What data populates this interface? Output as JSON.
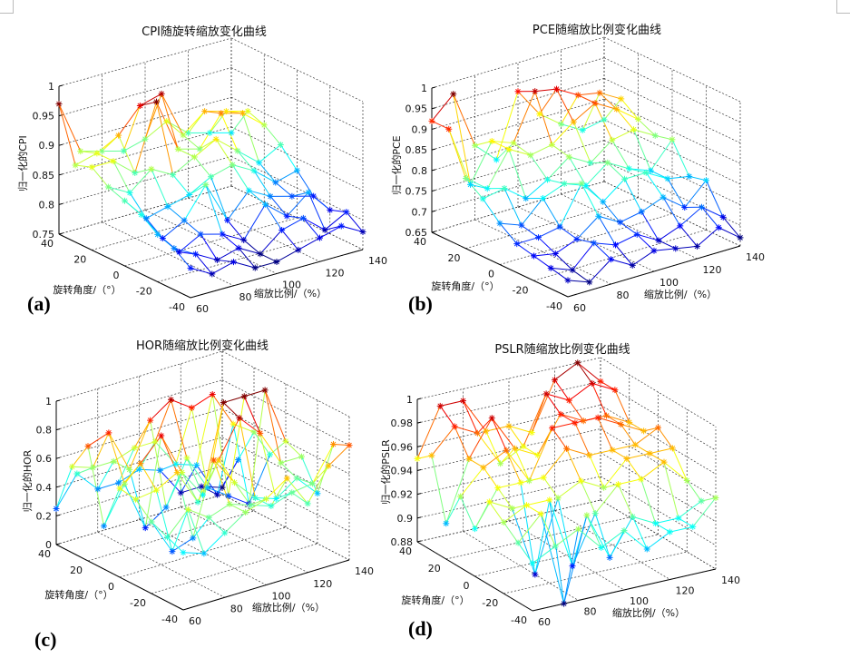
{
  "chart_data": [
    {
      "type": "surface-mesh",
      "title": "CPI随旋转缩放变化曲线",
      "panel_label": "(a)",
      "xlabel": "缩放比例/（%）",
      "ylabel": "旋转角度/（°）",
      "zlabel": "归一化的CPI",
      "x": [
        60,
        70,
        80,
        90,
        100,
        110,
        120,
        130,
        140
      ],
      "y": [
        40,
        30,
        20,
        10,
        0,
        -10,
        -20,
        -30,
        -40
      ],
      "xticks": [
        "60",
        "80",
        "100",
        "120",
        "140"
      ],
      "yticks": [
        "40",
        "20",
        "0",
        "-20",
        "-40"
      ],
      "zticks": [
        "0.75",
        "0.8",
        "0.85",
        "0.9",
        "0.95",
        "1"
      ],
      "xlim": [
        60,
        140
      ],
      "ylim": [
        -40,
        40
      ],
      "zlim": [
        0.75,
        1
      ],
      "grid": true,
      "colormap": "jet",
      "marker": "*",
      "z": [
        [
          0.97,
          0.88,
          0.87,
          0.86,
          0.87,
          0.89,
          0.86,
          0.85,
          0.84
        ],
        [
          0.88,
          0.89,
          0.91,
          0.95,
          0.96,
          0.88,
          0.91,
          0.9,
          0.89
        ],
        [
          0.89,
          0.89,
          0.86,
          0.97,
          0.88,
          0.87,
          0.92,
          0.91,
          0.88
        ],
        [
          0.87,
          0.85,
          0.88,
          0.86,
          0.88,
          0.9,
          0.87,
          0.84,
          0.86
        ],
        [
          0.86,
          0.82,
          0.83,
          0.84,
          0.86,
          0.87,
          0.85,
          0.82,
          0.83
        ],
        [
          0.85,
          0.8,
          0.82,
          0.87,
          0.8,
          0.84,
          0.82,
          0.81,
          0.8
        ],
        [
          0.83,
          0.79,
          0.81,
          0.8,
          0.78,
          0.83,
          0.8,
          0.83,
          0.79
        ],
        [
          0.82,
          0.8,
          0.78,
          0.79,
          0.77,
          0.8,
          0.81,
          0.78,
          0.8
        ],
        [
          0.8,
          0.78,
          0.79,
          0.77,
          0.77,
          0.78,
          0.79,
          0.8,
          0.78
        ]
      ]
    },
    {
      "type": "surface-mesh",
      "title": "PCE随缩放比例变化曲线",
      "panel_label": "(b)",
      "xlabel": "缩放比例/（%）",
      "ylabel": "旋转角度/（°）",
      "zlabel": "归一化的PCE",
      "x": [
        60,
        70,
        80,
        90,
        100,
        110,
        120,
        130,
        140
      ],
      "y": [
        40,
        30,
        20,
        10,
        0,
        -10,
        -20,
        -30,
        -40
      ],
      "xticks": [
        "60",
        "80",
        "100",
        "120",
        "140"
      ],
      "yticks": [
        "40",
        "20",
        "0",
        "-20",
        "-40"
      ],
      "zticks": [
        "0.65",
        "0.7",
        "0.75",
        "0.8",
        "0.85",
        "0.9",
        "0.95",
        "1"
      ],
      "xlim": [
        60,
        140
      ],
      "ylim": [
        -40,
        40
      ],
      "zlim": [
        0.65,
        1
      ],
      "grid": true,
      "colormap": "jet",
      "marker": "*",
      "z": [
        [
          0.92,
          0.97,
          0.83,
          0.78,
          0.93,
          0.86,
          0.82,
          0.79,
          0.8
        ],
        [
          0.92,
          0.77,
          0.86,
          0.84,
          0.95,
          0.94,
          0.91,
          0.9,
          0.87
        ],
        [
          0.82,
          0.78,
          0.86,
          0.83,
          0.84,
          0.88,
          0.91,
          0.88,
          0.84
        ],
        [
          0.79,
          0.8,
          0.76,
          0.79,
          0.83,
          0.8,
          0.84,
          0.85,
          0.82
        ],
        [
          0.75,
          0.73,
          0.78,
          0.8,
          0.78,
          0.82,
          0.79,
          0.77,
          0.83
        ],
        [
          0.72,
          0.72,
          0.73,
          0.82,
          0.76,
          0.8,
          0.8,
          0.77,
          0.76
        ],
        [
          0.71,
          0.7,
          0.72,
          0.76,
          0.73,
          0.74,
          0.76,
          0.72,
          0.77
        ],
        [
          0.7,
          0.68,
          0.73,
          0.71,
          0.72,
          0.69,
          0.71,
          0.74,
          0.7
        ],
        [
          0.69,
          0.67,
          0.71,
          0.68,
          0.7,
          0.69,
          0.68,
          0.71,
          0.67
        ]
      ]
    },
    {
      "type": "surface-mesh",
      "title": "HOR随缩放比例变化曲线",
      "panel_label": "(c)",
      "xlabel": "缩放比例/（%）",
      "ylabel": "旋转角度/（°）",
      "zlabel": "归一化的HOR",
      "x": [
        60,
        70,
        80,
        90,
        100,
        110,
        120,
        130,
        140
      ],
      "y": [
        40,
        30,
        20,
        10,
        0,
        -10,
        -20,
        -30,
        -40
      ],
      "xticks": [
        "60",
        "80",
        "100",
        "120",
        "140"
      ],
      "yticks": [
        "40",
        "20",
        "0",
        "-20",
        "-40"
      ],
      "zticks": [
        "0",
        "0.2",
        "0.4",
        "0.6",
        "0.8",
        "1"
      ],
      "xlim": [
        60,
        140
      ],
      "ylim": [
        -40,
        40
      ],
      "zlim": [
        0,
        1
      ],
      "grid": true,
      "colormap": "jet",
      "marker": "*",
      "z": [
        [
          0.25,
          0.45,
          0.3,
          0.3,
          0.35,
          0.3,
          0.1,
          0.1,
          0.05
        ],
        [
          0.6,
          0.55,
          0.55,
          0.6,
          0.6,
          0.4,
          0.35,
          0.1,
          0.3
        ],
        [
          0.8,
          0.85,
          0.55,
          0.85,
          0.95,
          0.85,
          0.9,
          0.65,
          0.55
        ],
        [
          0.3,
          0.55,
          0.2,
          0.3,
          0.6,
          0.35,
          0.25,
          0.15,
          0.45
        ],
        [
          0.62,
          0.75,
          0.9,
          0.6,
          0.4,
          1.0,
          1.0,
          1.0,
          0.6
        ],
        [
          0.6,
          0.62,
          0.7,
          0.45,
          0.7,
          0.95,
          0.8,
          0.55,
          0.55
        ],
        [
          0.5,
          0.25,
          0.3,
          0.8,
          0.6,
          0.45,
          0.4,
          0.5,
          0.35
        ],
        [
          0.45,
          0.6,
          0.5,
          0.55,
          0.5,
          0.45,
          0.5,
          0.52,
          0.75
        ],
        [
          0.4,
          0.35,
          0.45,
          0.55,
          0.6,
          0.7,
          0.48,
          0.7,
          0.8
        ]
      ]
    },
    {
      "type": "surface-mesh",
      "title": "PSLR随缩放比例变化曲线",
      "panel_label": "(d)",
      "xlabel": "缩放比例/（%）",
      "ylabel": "旋转角度/（°）",
      "zlabel": "归一化的PSLR",
      "x": [
        60,
        70,
        80,
        90,
        100,
        110,
        120,
        130,
        140
      ],
      "y": [
        40,
        30,
        20,
        10,
        0,
        -10,
        -20,
        -30,
        -40
      ],
      "xticks": [
        "60",
        "80",
        "100",
        "120",
        "140"
      ],
      "yticks": [
        "40",
        "20",
        "0",
        "-20",
        "-40"
      ],
      "zticks": [
        "0.88",
        "0.9",
        "0.92",
        "0.94",
        "0.96",
        "0.98",
        "1"
      ],
      "xlim": [
        60,
        140
      ],
      "ylim": [
        -40,
        40
      ],
      "zlim": [
        0.88,
        1
      ],
      "grid": true,
      "colormap": "jet",
      "marker": "*",
      "z": [
        [
          0.95,
          0.99,
          0.99,
          0.96,
          0.96,
          0.95,
          0.99,
          1.0,
          0.98
        ],
        [
          0.96,
          0.98,
          0.97,
          0.94,
          0.95,
          0.99,
          0.98,
          0.99,
          0.98
        ],
        [
          0.91,
          0.96,
          0.99,
          0.96,
          0.95,
          0.98,
          0.97,
          0.97,
          0.96
        ],
        [
          0.94,
          0.96,
          0.97,
          0.94,
          0.98,
          0.98,
          0.98,
          0.97,
          0.96
        ],
        [
          0.92,
          0.95,
          0.95,
          0.95,
          0.97,
          0.96,
          0.96,
          0.96,
          0.97
        ],
        [
          0.95,
          0.94,
          0.88,
          0.94,
          0.95,
          0.94,
          0.96,
          0.96,
          0.96
        ],
        [
          0.94,
          0.95,
          0.95,
          0.89,
          0.93,
          0.95,
          0.95,
          0.96,
          0.94
        ],
        [
          0.93,
          0.95,
          0.87,
          0.94,
          0.9,
          0.93,
          0.92,
          0.92,
          0.93
        ],
        [
          0.92,
          0.93,
          0.94,
          0.92,
          0.93,
          0.91,
          0.92,
          0.92,
          0.94
        ]
      ]
    }
  ]
}
